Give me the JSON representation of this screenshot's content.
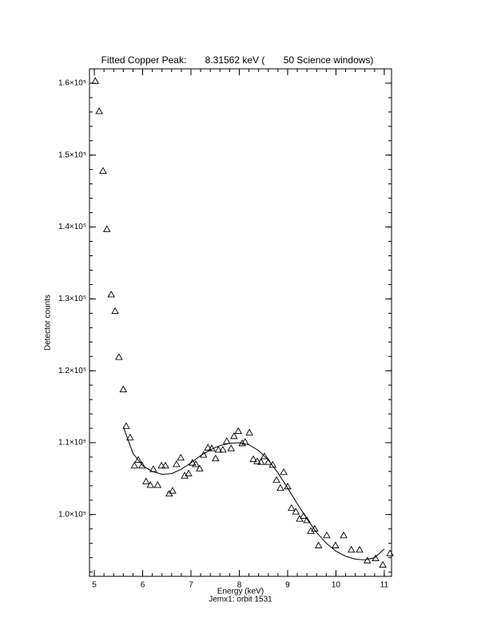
{
  "chart_data": {
    "type": "scatter",
    "title": "Fitted Copper Peak:       8.31562 keV (       50 Science windows)",
    "x_label": "Energy (keV)",
    "subtitle": "Jemx1: orbit 1531",
    "y_label": "Detector counts",
    "xlim": [
      4.9,
      11.15
    ],
    "ylim": [
      91400,
      162000
    ],
    "xticks": [
      5,
      6,
      7,
      8,
      9,
      10,
      11
    ],
    "yticks": [
      {
        "value": 100000,
        "label": "1.0×10⁵"
      },
      {
        "value": 110000,
        "label": "1.1×10⁵"
      },
      {
        "value": 120000,
        "label": "1.2×10⁵"
      },
      {
        "value": 130000,
        "label": "1.3×10⁵"
      },
      {
        "value": 140000,
        "label": "1.4×10⁵"
      },
      {
        "value": 150000,
        "label": "1.5×10⁵"
      },
      {
        "value": 160000,
        "label": "1.6×10⁵"
      }
    ],
    "x_minor_divisions": 5,
    "y_minor_divisions": 5,
    "series": [
      {
        "type": "scatter",
        "color": "#000000",
        "x": [
          5.02,
          5.1,
          5.18,
          5.26,
          5.35,
          5.43,
          5.51,
          5.6,
          5.66,
          5.74,
          5.83,
          5.91,
          5.99,
          6.07,
          6.16,
          6.22,
          6.31,
          6.39,
          6.47,
          6.55,
          6.62,
          6.7,
          6.79,
          6.87,
          6.95,
          7.03,
          7.1,
          7.18,
          7.26,
          7.35,
          7.43,
          7.51,
          7.57,
          7.66,
          7.74,
          7.83,
          7.89,
          7.98,
          8.06,
          8.12,
          8.21,
          8.29,
          8.37,
          8.45,
          8.52,
          8.6,
          8.69,
          8.77,
          8.85,
          8.92,
          9.0,
          9.08,
          9.17,
          9.25,
          9.33,
          9.4,
          9.48,
          9.56,
          9.64,
          9.81,
          9.99,
          10.16,
          10.32,
          10.49,
          10.65,
          10.82,
          10.97,
          11.12
        ],
        "values": [
          160300,
          156100,
          147800,
          139700,
          130600,
          128300,
          121900,
          117400,
          112300,
          110700,
          106800,
          107600,
          106800,
          104600,
          104100,
          106300,
          104100,
          106800,
          106800,
          102900,
          103300,
          107000,
          107900,
          105400,
          105700,
          107200,
          107000,
          106400,
          108300,
          109300,
          109200,
          107800,
          109000,
          109000,
          110200,
          109200,
          110900,
          111600,
          109900,
          110100,
          111400,
          107700,
          107400,
          107300,
          108100,
          107300,
          106900,
          104800,
          103700,
          105900,
          103900,
          100900,
          100400,
          99400,
          99800,
          99200,
          97700,
          98000,
          95700,
          97100,
          95700,
          97100,
          95100,
          95100,
          93600,
          93900,
          93000,
          94600
        ]
      },
      {
        "type": "line",
        "color": "#000000",
        "x": [
          5.6,
          5.8,
          6.0,
          6.2,
          6.4,
          6.6,
          6.8,
          7.0,
          7.2,
          7.4,
          7.6,
          7.8,
          8.0,
          8.2,
          8.4,
          8.6,
          8.8,
          9.0,
          9.2,
          9.4,
          9.6,
          9.8,
          10.0,
          10.2,
          10.4,
          10.6,
          10.8,
          11.0
        ],
        "values": [
          112200,
          108500,
          106800,
          106000,
          105600,
          105700,
          106300,
          107200,
          108200,
          109000,
          109600,
          109900,
          110000,
          109700,
          108900,
          107600,
          105800,
          103700,
          101500,
          99400,
          97500,
          96000,
          94900,
          94200,
          93800,
          93700,
          94000,
          95200
        ]
      }
    ]
  }
}
